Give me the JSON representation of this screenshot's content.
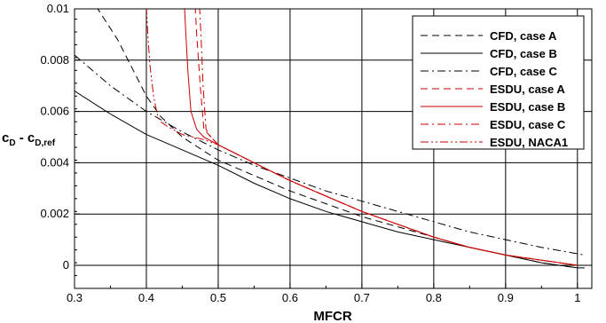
{
  "chart_data": {
    "type": "line",
    "xlabel": "MFCR",
    "ylabel": "c_D - c_D,ref",
    "ylabel_parts": {
      "main": "c",
      "main_sub": "D",
      "sep": " - c",
      "ref_sub": "D,ref"
    },
    "xlim": [
      0.3,
      1.02
    ],
    "ylim": [
      -0.0009,
      0.01
    ],
    "xticks": [
      0.3,
      0.4,
      0.5,
      0.6,
      0.7,
      0.8,
      0.9,
      1.0
    ],
    "xtick_labels": [
      "0.3",
      "0.4",
      "0.5",
      "0.6",
      "0.7",
      "0.8",
      "0.9",
      "1"
    ],
    "yticks": [
      0,
      0.002,
      0.004,
      0.006,
      0.008,
      0.01
    ],
    "ytick_labels": [
      "0",
      "0.002",
      "0.004",
      "0.006",
      "0.008",
      "0.01"
    ],
    "grid": true,
    "legend_position": "top-right",
    "series": [
      {
        "name": "CFD, case A",
        "color": "#000000",
        "dash": "dashed",
        "x": [
          0.33,
          0.36,
          0.38,
          0.4,
          0.42,
          0.45,
          0.5,
          0.55,
          0.6,
          0.65,
          0.7,
          0.75,
          0.8,
          0.85,
          0.9,
          0.95,
          1.0
        ],
        "y": [
          0.0101,
          0.0088,
          0.0077,
          0.0066,
          0.0058,
          0.005,
          0.0041,
          0.0035,
          0.0029,
          0.0024,
          0.0019,
          0.0015,
          0.0011,
          0.0007,
          0.0004,
          0.0001,
          -0.0001
        ]
      },
      {
        "name": "CFD, case B",
        "color": "#000000",
        "dash": "solid",
        "x": [
          0.3,
          0.35,
          0.4,
          0.45,
          0.5,
          0.55,
          0.6,
          0.65,
          0.7,
          0.75,
          0.8,
          0.85,
          0.9,
          0.95,
          1.0,
          1.01
        ],
        "y": [
          0.0068,
          0.0059,
          0.0051,
          0.0045,
          0.0039,
          0.0032,
          0.0026,
          0.0021,
          0.0017,
          0.0013,
          0.001,
          0.0007,
          0.0004,
          0.0001,
          -0.0001,
          -0.0001
        ]
      },
      {
        "name": "CFD, case C",
        "color": "#000000",
        "dash": "dashdot",
        "x": [
          0.3,
          0.35,
          0.4,
          0.45,
          0.5,
          0.55,
          0.6,
          0.65,
          0.7,
          0.75,
          0.8,
          0.85,
          0.9,
          0.95,
          1.01
        ],
        "y": [
          0.0082,
          0.007,
          0.006,
          0.0052,
          0.0045,
          0.0039,
          0.0034,
          0.0029,
          0.0025,
          0.0021,
          0.0017,
          0.0013,
          0.001,
          0.0007,
          0.0004
        ]
      },
      {
        "name": "ESDU, case A",
        "color": "#cc0000",
        "dash": "dashed",
        "x": [
          0.468,
          0.47,
          0.475,
          0.48,
          0.49,
          0.5,
          0.55,
          0.6,
          0.65,
          0.7,
          0.75,
          0.8,
          0.85,
          0.9,
          0.95,
          1.0
        ],
        "y": [
          0.0101,
          0.009,
          0.007,
          0.0053,
          0.005,
          0.0047,
          0.004,
          0.0033,
          0.0027,
          0.0021,
          0.0016,
          0.0011,
          0.0007,
          0.0004,
          0.0002,
          0.0
        ]
      },
      {
        "name": "ESDU, case B",
        "color": "#cc0000",
        "dash": "solid",
        "x": [
          0.453,
          0.455,
          0.458,
          0.462,
          0.47,
          0.48,
          0.5,
          0.55,
          0.6,
          0.65,
          0.7,
          0.75,
          0.8,
          0.85,
          0.9,
          0.95,
          1.0
        ],
        "y": [
          0.0101,
          0.009,
          0.0075,
          0.006,
          0.0053,
          0.005,
          0.0047,
          0.004,
          0.0033,
          0.0027,
          0.0021,
          0.0016,
          0.0011,
          0.0007,
          0.0004,
          0.0002,
          0.0
        ]
      },
      {
        "name": "ESDU, case C",
        "color": "#cc0000",
        "dash": "dashdot",
        "x": [
          0.474,
          0.476,
          0.479,
          0.483,
          0.49,
          0.5,
          0.55,
          0.6,
          0.65,
          0.7,
          0.75,
          0.8,
          0.85,
          0.9,
          0.95,
          1.0
        ],
        "y": [
          0.0101,
          0.009,
          0.007,
          0.0053,
          0.005,
          0.0047,
          0.004,
          0.0033,
          0.0027,
          0.0021,
          0.0016,
          0.0011,
          0.0007,
          0.0004,
          0.0002,
          0.0
        ]
      },
      {
        "name": "ESDU, NACA1",
        "color": "#cc0000",
        "dash": "dashdotdot",
        "x": [
          0.4,
          0.402,
          0.405,
          0.41,
          0.415,
          0.42,
          0.43,
          0.45,
          0.48,
          0.5,
          0.55,
          0.6,
          0.65,
          0.7,
          0.75,
          0.8,
          0.85,
          0.9,
          0.95,
          1.0
        ],
        "y": [
          0.0101,
          0.009,
          0.0078,
          0.0066,
          0.0059,
          0.0056,
          0.0054,
          0.0051,
          0.0049,
          0.0047,
          0.004,
          0.0033,
          0.0027,
          0.0021,
          0.0016,
          0.0011,
          0.0007,
          0.0004,
          0.0002,
          0.0
        ]
      }
    ]
  }
}
